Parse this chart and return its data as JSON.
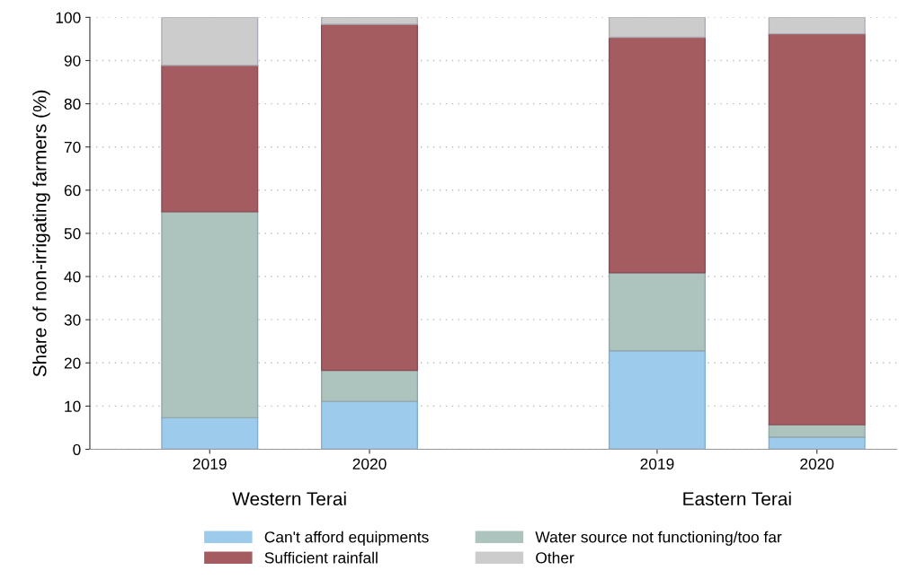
{
  "chart_data": {
    "type": "bar",
    "stacked": true,
    "ylabel": "Share of non-irrigating farmers (%)",
    "categories": [
      "2019",
      "2020",
      "2019",
      "2020"
    ],
    "series": [
      {
        "name": "Can't afford equipments",
        "color": "#9ccbeb",
        "values": [
          7.3,
          11.1,
          22.8,
          2.8
        ]
      },
      {
        "name": "Water source not functioning/too far",
        "color": "#adc4be",
        "values": [
          47.7,
          7.2,
          18.1,
          2.9
        ]
      },
      {
        "name": "Sufficient rainfall",
        "color": "#a55c60",
        "values": [
          33.9,
          80.1,
          54.5,
          90.5
        ]
      },
      {
        "name": "Other",
        "color": "#cccccc",
        "values": [
          11.1,
          1.6,
          4.6,
          3.8
        ]
      }
    ],
    "ylim": [
      0,
      100
    ],
    "yticks": [
      0,
      10,
      20,
      30,
      40,
      50,
      60,
      70,
      80,
      90,
      100
    ],
    "grid": "y",
    "legend": "bottom",
    "annotations": [
      "Western Terai",
      "Eastern Terai"
    ]
  }
}
